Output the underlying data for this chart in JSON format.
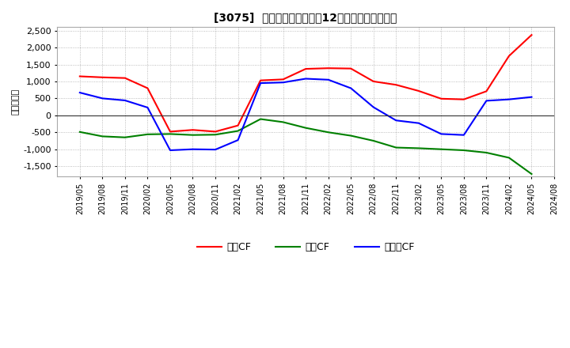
{
  "title": "[3075]  キャッシュフローの12か月移動合計の推移",
  "ylabel": "（百万円）",
  "ylim": [
    -1800,
    2600
  ],
  "yticks": [
    -1500,
    -1000,
    -500,
    0,
    500,
    1000,
    1500,
    2000,
    2500
  ],
  "background_color": "#ffffff",
  "plot_bg_color": "#ffffff",
  "grid_color": "#aaaaaa",
  "x_labels": [
    "2019/05",
    "2019/08",
    "2019/11",
    "2020/02",
    "2020/05",
    "2020/08",
    "2020/11",
    "2021/02",
    "2021/05",
    "2021/08",
    "2021/11",
    "2022/02",
    "2022/05",
    "2022/08",
    "2022/11",
    "2023/02",
    "2023/05",
    "2023/08",
    "2023/11",
    "2024/02",
    "2024/05",
    "2024/08"
  ],
  "operating_cf": [
    1150,
    1120,
    1100,
    800,
    -480,
    -430,
    -480,
    -300,
    1030,
    1060,
    1370,
    1390,
    1380,
    1000,
    900,
    720,
    490,
    470,
    710,
    1750,
    2370,
    null
  ],
  "investing_cf": [
    -490,
    -620,
    -650,
    -560,
    -550,
    -580,
    -570,
    -460,
    -110,
    -200,
    -370,
    -500,
    -600,
    -750,
    -950,
    -970,
    -1000,
    -1030,
    -1100,
    -1250,
    -1730,
    null
  ],
  "free_cf": [
    670,
    500,
    440,
    230,
    -1030,
    -1000,
    -1010,
    -730,
    950,
    970,
    1080,
    1050,
    800,
    240,
    -150,
    -230,
    -550,
    -580,
    430,
    470,
    540,
    null
  ],
  "operating_color": "#ff0000",
  "investing_color": "#008000",
  "free_color": "#0000ff",
  "line_width": 1.5,
  "legend_labels": [
    "営業CF",
    "投資CF",
    "フリーCF"
  ]
}
